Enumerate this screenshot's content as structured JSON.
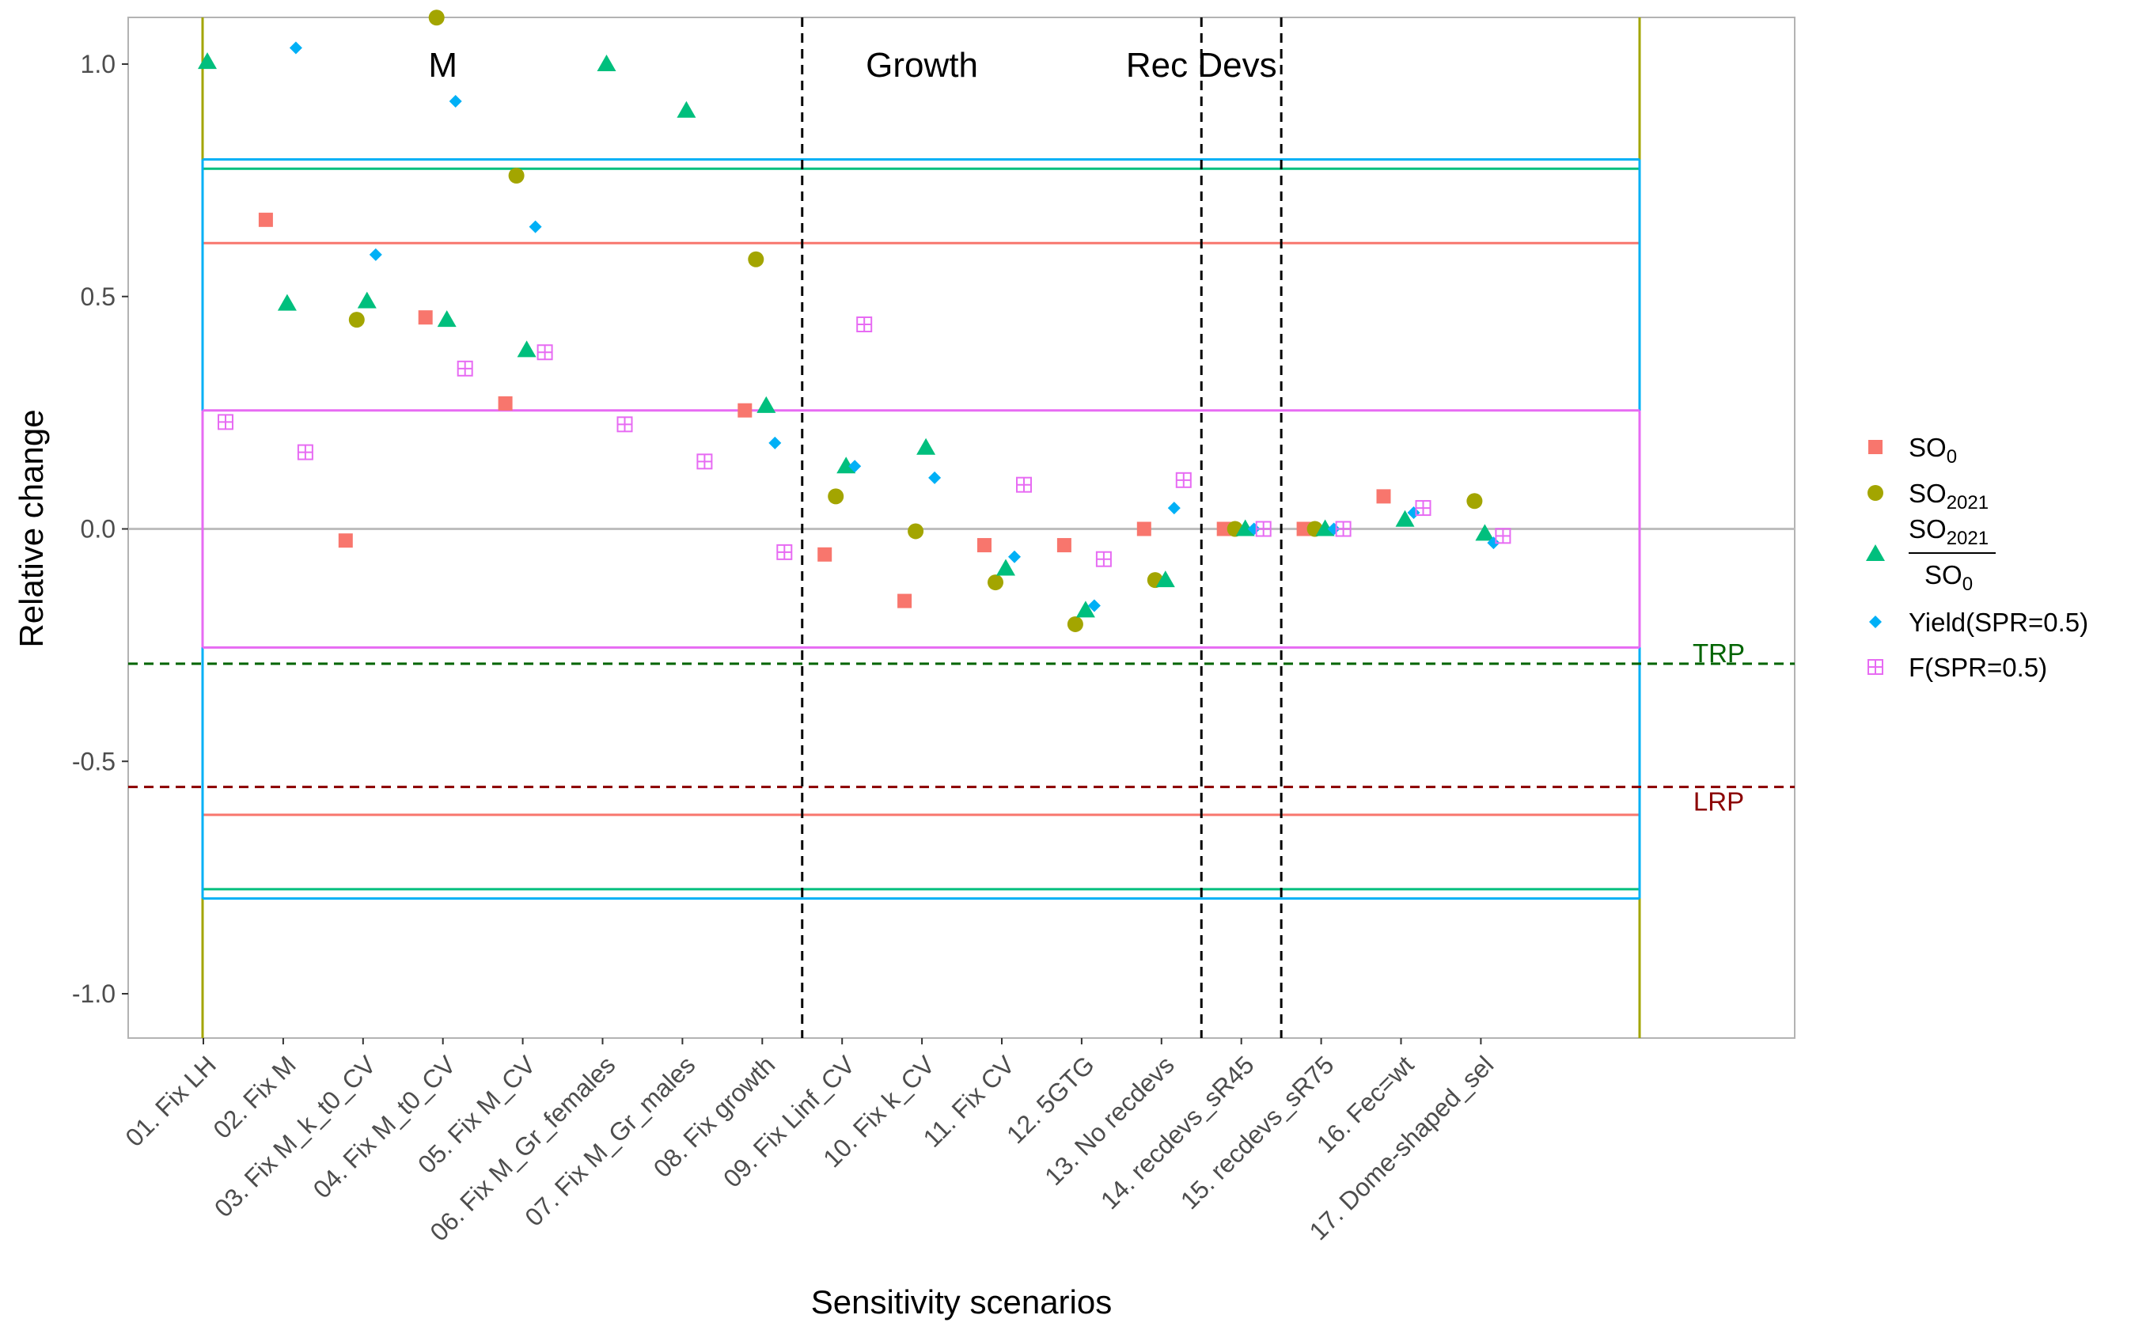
{
  "chart_data": {
    "type": "scatter",
    "title": "",
    "xlabel": "Sensitivity scenarios",
    "ylabel": "Relative change",
    "ylim": [
      -1.1,
      1.1
    ],
    "y_ticks": [
      "-1.0",
      "-0.5",
      "0.0",
      "0.5",
      "1.0"
    ],
    "y_tick_values": [
      -1.0,
      -0.5,
      0.0,
      0.5,
      1.0
    ],
    "categories": [
      "01. Fix LH",
      "02. Fix M",
      "03. Fix M_k_t0_CV",
      "04. Fix M_t0_CV",
      "05. Fix M_CV",
      "06. Fix M_Gr_females",
      "07. Fix M_Gr_males",
      "08. Fix growth",
      "09. Fix Linf_CV",
      "10. Fix k_CV",
      "11. Fix CV",
      "12. 5GTG",
      "13. No recdevs",
      "14. recdevs_sR45",
      "15. recdevs_sR75",
      "16. Fec=wt",
      "17. Dome-shaped_sel"
    ],
    "group_labels": [
      {
        "text": "M",
        "position": 4
      },
      {
        "text": "Growth",
        "position": 10
      },
      {
        "text": "Rec Devs",
        "position": 13.5
      }
    ],
    "group_dividers": [
      8,
      13,
      14
    ],
    "legend_position": "right",
    "series": [
      {
        "name": "SO",
        "subscript": "0",
        "color": "#f8766d",
        "marker": "square",
        "values": [
          null,
          0.665,
          -0.025,
          0.455,
          0.27,
          null,
          null,
          0.255,
          -0.055,
          -0.155,
          -0.035,
          -0.035,
          0.0,
          0.0,
          0.0,
          0.07,
          null
        ]
      },
      {
        "name": "SO",
        "subscript": "2021",
        "color": "#a3a500",
        "marker": "circle",
        "values": [
          null,
          null,
          0.45,
          1.1,
          0.76,
          null,
          null,
          0.58,
          0.07,
          -0.005,
          -0.115,
          -0.205,
          -0.11,
          0.0,
          0.0,
          null,
          0.06
        ]
      },
      {
        "name": "SO2021/SO0",
        "numerator": "SO",
        "numerator_sub": "2021",
        "denominator": "SO",
        "denominator_sub": "0",
        "color": "#00bf7d",
        "marker": "triangle",
        "values": [
          1.005,
          0.485,
          0.49,
          0.45,
          0.385,
          1.0,
          0.9,
          0.265,
          0.135,
          0.175,
          -0.085,
          -0.175,
          -0.11,
          0.0,
          0.0,
          0.02,
          -0.01
        ]
      },
      {
        "name": "Yield(SPR=0.5)",
        "color": "#00b0f6",
        "marker": "diamond",
        "values": [
          null,
          1.035,
          0.59,
          0.92,
          0.65,
          null,
          null,
          0.185,
          0.135,
          0.11,
          -0.06,
          -0.165,
          0.045,
          0.0,
          0.0,
          0.035,
          -0.03
        ]
      },
      {
        "name": "F(SPR=0.5)",
        "color": "#e76bf3",
        "marker": "boxplus",
        "values": [
          0.23,
          0.165,
          null,
          0.345,
          0.38,
          0.225,
          0.145,
          -0.05,
          0.44,
          null,
          0.095,
          -0.065,
          0.105,
          0.0,
          0.0,
          0.045,
          -0.015
        ]
      }
    ],
    "reference_lines": [
      {
        "label": "TRP",
        "y": -0.29,
        "color": "#006400",
        "style": "dashed"
      },
      {
        "label": "LRP",
        "y": -0.555,
        "color": "#8b0000",
        "style": "dashed"
      }
    ],
    "bands": [
      {
        "color": "#f8766d",
        "ymin": -0.615,
        "ymax": 0.615
      },
      {
        "color": "#00bf7d",
        "ymin": -0.775,
        "ymax": 0.775
      },
      {
        "color": "#00b0f6",
        "ymin": -0.795,
        "ymax": 0.795
      },
      {
        "color": "#e76bf3",
        "ymin": -0.255,
        "ymax": 0.255
      }
    ],
    "band_x_range": [
      0,
      18
    ],
    "zero_line_color": "#bebebe",
    "olive_verticals_color": "#a3a500"
  }
}
